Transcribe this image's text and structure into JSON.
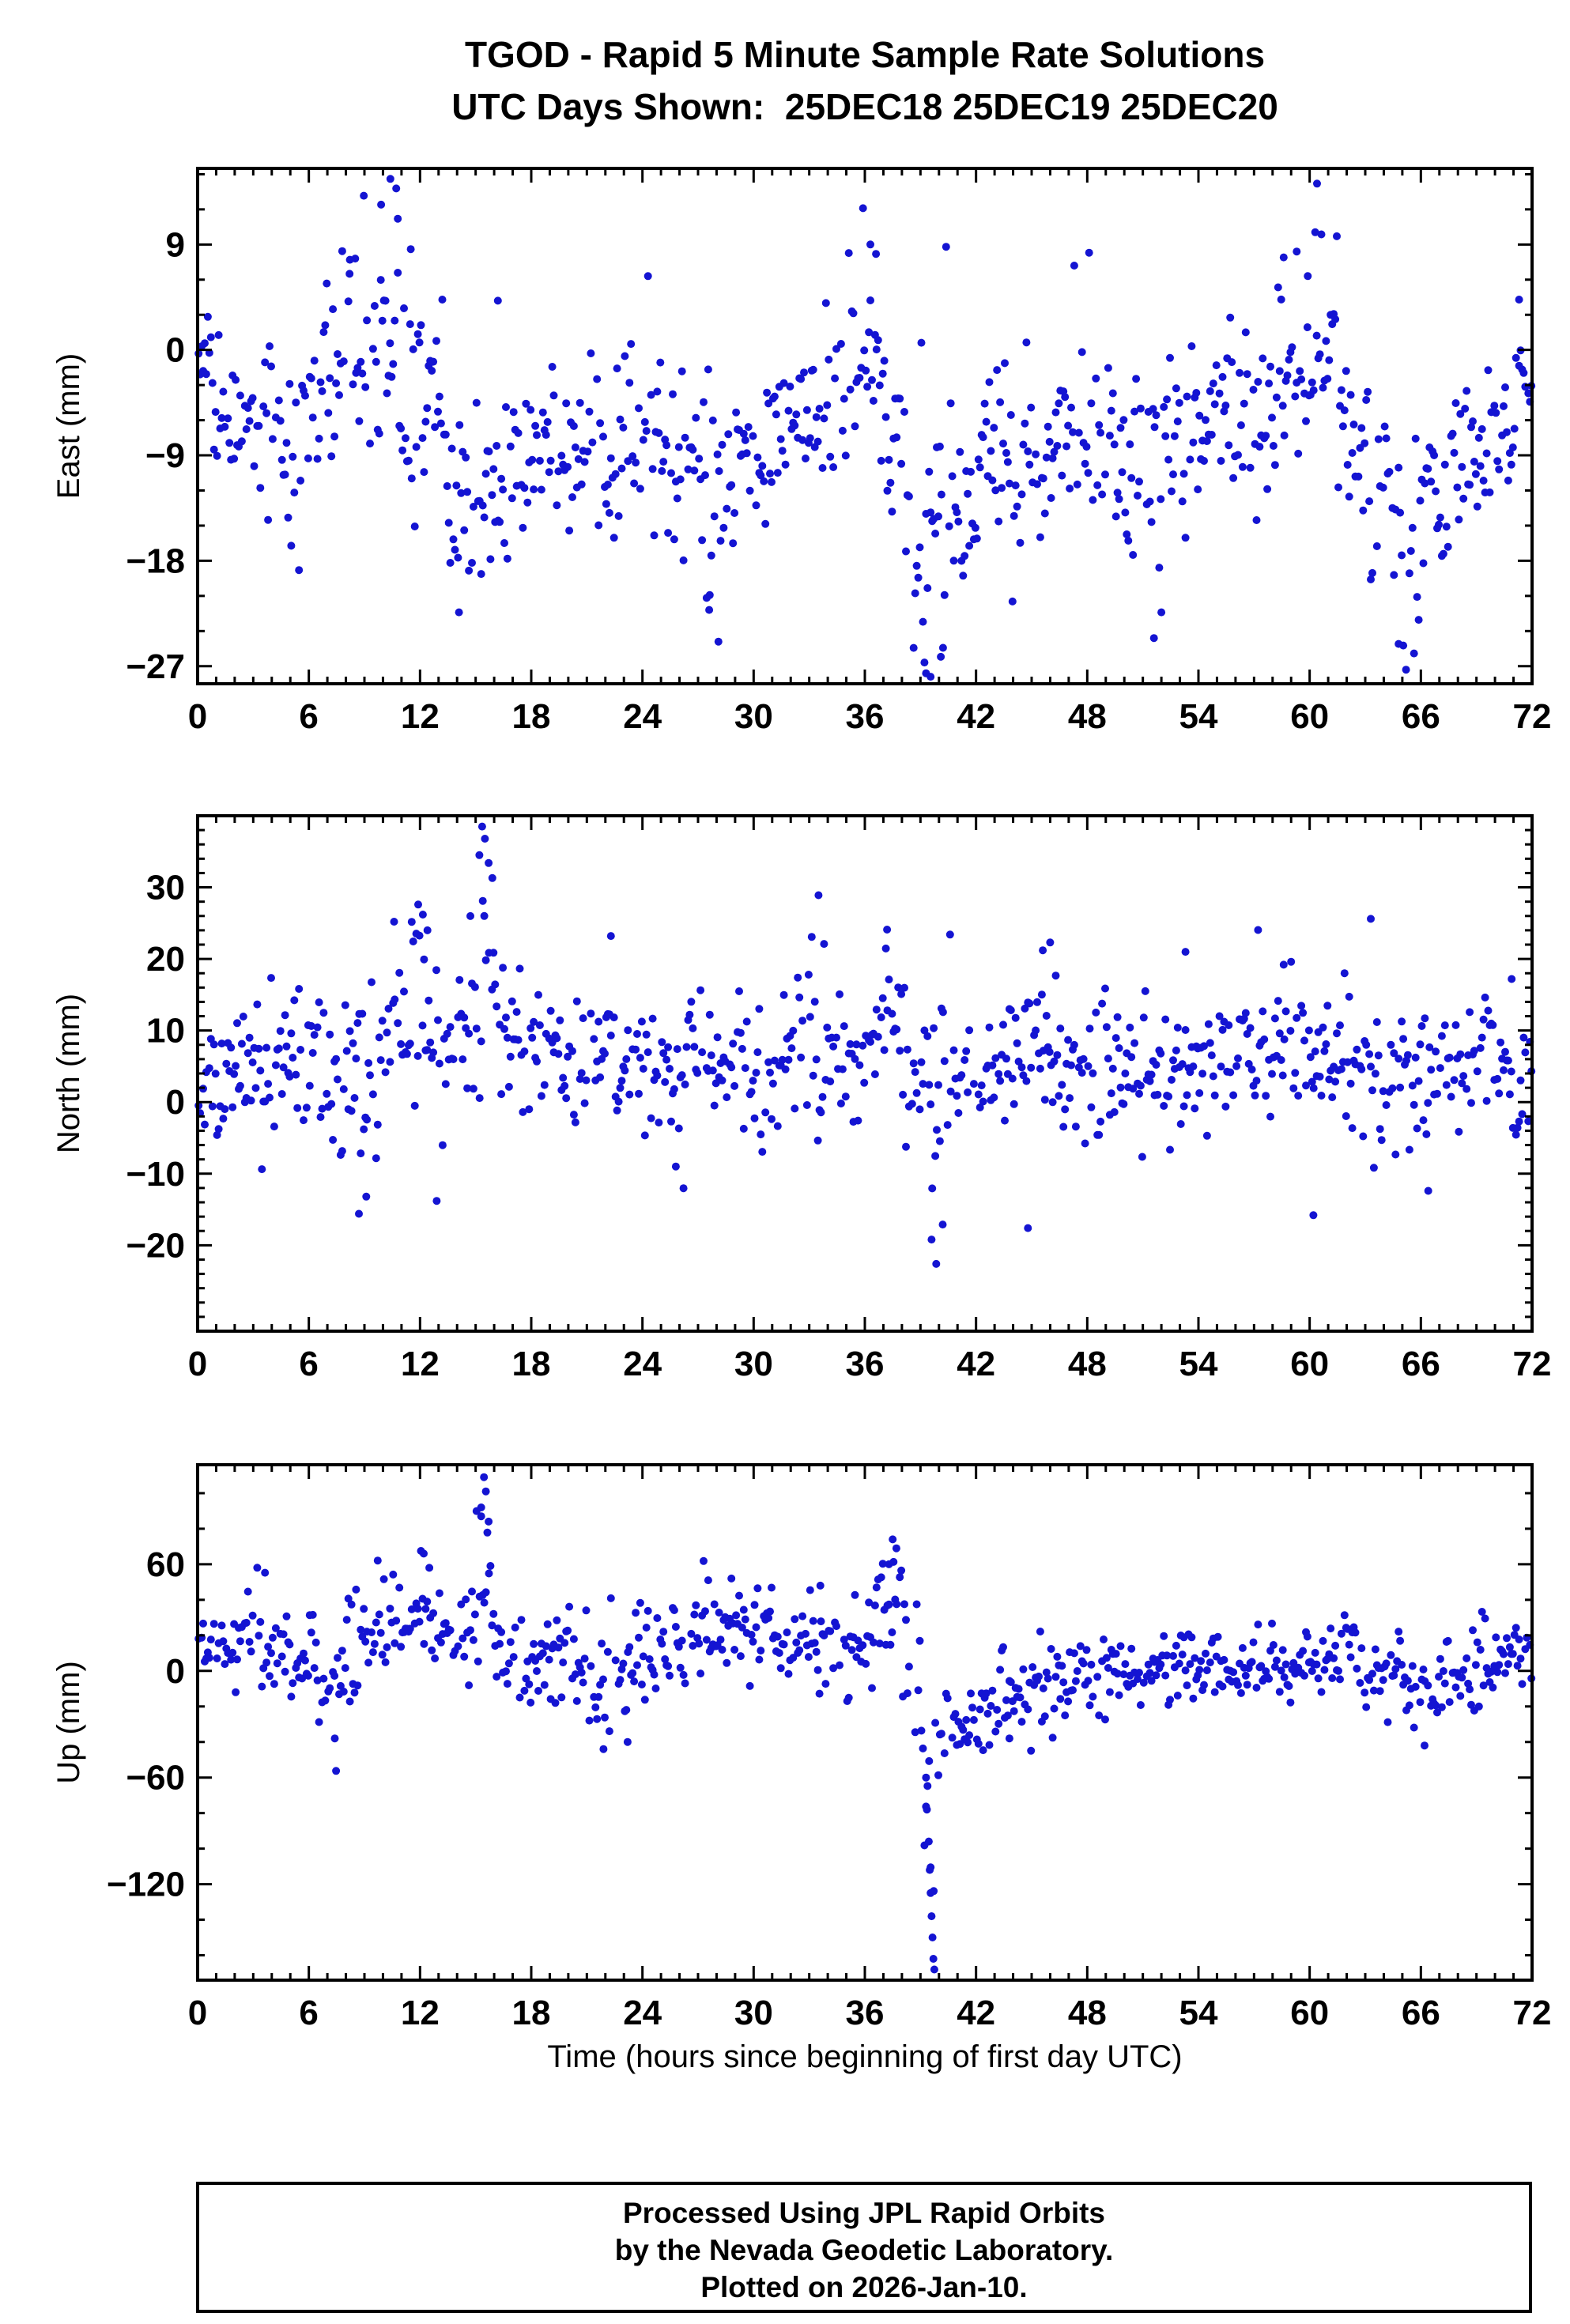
{
  "seed": 20181225,
  "title": {
    "line1": "TGOD - Rapid 5 Minute Sample Rate Solutions",
    "line2": "UTC Days Shown:  25DEC18 25DEC19 25DEC20"
  },
  "xlabel": "Time (hours since beginning of first day UTC)",
  "footer": {
    "line1": "Processed Using JPL Rapid Orbits",
    "line2": "by the Nevada Geodetic Laboratory.",
    "line3": "Plotted on 2026-Jan-10."
  },
  "colors": {
    "point": "#1414d2",
    "axis": "#000000",
    "background": "#ffffff"
  },
  "x_axis": {
    "min": 0,
    "max": 72,
    "major_step": 6,
    "minor_step": 1,
    "tick_labels": [
      0,
      6,
      12,
      18,
      24,
      30,
      36,
      42,
      48,
      54,
      60,
      66,
      72
    ]
  },
  "chart_data": [
    {
      "type": "scatter",
      "name": "East",
      "ylabel": "East (mm)",
      "units": "mm",
      "ylim": [
        -28.5,
        15.5
      ],
      "yticks": [
        9,
        0,
        -9,
        -18,
        -27
      ],
      "y_minor_step": 3,
      "synthesis": {
        "sample_step_hours": 0.083333,
        "drop_fraction": 0.12,
        "segments": [
          [
            0,
            0.8,
            -0.5,
            1.5
          ],
          [
            0.8,
            2.5,
            -6,
            2.5
          ],
          [
            2.5,
            4.5,
            -5,
            3
          ],
          [
            4.5,
            6,
            -8,
            4
          ],
          [
            6,
            7.5,
            -3,
            4.5
          ],
          [
            7.5,
            9,
            1,
            4.5
          ],
          [
            9,
            10,
            -3,
            5
          ],
          [
            10,
            11,
            2,
            6
          ],
          [
            11,
            12,
            -2,
            5
          ],
          [
            12,
            13.5,
            -4,
            4
          ],
          [
            13.5,
            15,
            -13,
            5
          ],
          [
            15,
            17,
            -11,
            4
          ],
          [
            17,
            19,
            -9,
            4
          ],
          [
            19,
            21,
            -8,
            3.5
          ],
          [
            21,
            23,
            -8,
            4
          ],
          [
            23,
            25,
            -9,
            4
          ],
          [
            25,
            27,
            -10,
            4.5
          ],
          [
            27,
            29,
            -13,
            5
          ],
          [
            29,
            31,
            -10,
            4
          ],
          [
            31,
            33,
            -7,
            3.5
          ],
          [
            33,
            35,
            -6,
            4
          ],
          [
            35,
            37,
            -3,
            5
          ],
          [
            37,
            38.5,
            -6,
            5
          ],
          [
            38.5,
            40.5,
            -15,
            6
          ],
          [
            40.5,
            42,
            -13,
            4
          ],
          [
            42,
            44,
            -9,
            4
          ],
          [
            44,
            46,
            -8,
            4
          ],
          [
            46,
            48,
            -7,
            4
          ],
          [
            48,
            50,
            -8,
            4
          ],
          [
            50,
            52,
            -11,
            5
          ],
          [
            52,
            54,
            -8,
            4
          ],
          [
            54,
            56,
            -6,
            3.5
          ],
          [
            56,
            58,
            -5,
            4
          ],
          [
            58,
            60,
            -3,
            4
          ],
          [
            60,
            61.5,
            -2,
            4.5
          ],
          [
            61.5,
            63,
            -7,
            4
          ],
          [
            63,
            64.5,
            -11,
            5
          ],
          [
            64.5,
            66,
            -17,
            5
          ],
          [
            66,
            67.5,
            -12,
            4
          ],
          [
            67.5,
            69.5,
            -9,
            3.5
          ],
          [
            69.5,
            71,
            -7,
            3.5
          ],
          [
            71,
            72,
            -4,
            3
          ]
        ]
      },
      "outliers": [
        [
          8.2,
          6.5
        ],
        [
          8.5,
          7.8
        ],
        [
          9.9,
          12.4
        ],
        [
          10.4,
          14.6
        ],
        [
          10.8,
          11.2
        ],
        [
          11.5,
          8.6
        ],
        [
          13.2,
          4.3
        ],
        [
          16.2,
          4.2
        ],
        [
          24.3,
          6.3
        ],
        [
          35.9,
          12.1
        ],
        [
          36.3,
          9.0
        ],
        [
          36.6,
          8.2
        ],
        [
          39.3,
          -27.6
        ],
        [
          39.55,
          -27.9
        ],
        [
          47.3,
          7.2
        ],
        [
          48.1,
          8.3
        ],
        [
          58.6,
          7.9
        ],
        [
          59.3,
          8.4
        ],
        [
          60.4,
          14.2
        ],
        [
          59.9,
          6.3
        ],
        [
          65.2,
          -27.3
        ],
        [
          64.8,
          -25.1
        ],
        [
          51.6,
          -24.6
        ],
        [
          52.0,
          -22.4
        ],
        [
          28.1,
          -24.9
        ],
        [
          27.6,
          -22.2
        ],
        [
          14.1,
          -22.4
        ],
        [
          40.1,
          -26.2
        ],
        [
          71.3,
          4.3
        ],
        [
          33.9,
          4.0
        ]
      ]
    },
    {
      "type": "scatter",
      "name": "North",
      "ylabel": "North (mm)",
      "units": "mm",
      "ylim": [
        -32,
        40
      ],
      "yticks": [
        30,
        20,
        10,
        0,
        -10,
        -20
      ],
      "y_minor_step": 2,
      "synthesis": {
        "sample_step_hours": 0.083333,
        "drop_fraction": 0.12,
        "segments": [
          [
            0,
            1.5,
            1,
            4.5
          ],
          [
            1.5,
            3,
            3,
            5.5
          ],
          [
            3,
            5,
            4,
            6
          ],
          [
            5,
            7,
            6,
            5.5
          ],
          [
            7,
            8.5,
            3,
            7
          ],
          [
            8.5,
            10,
            5,
            7
          ],
          [
            10,
            11.5,
            9,
            6
          ],
          [
            11.5,
            13,
            11,
            7
          ],
          [
            13,
            14.5,
            7,
            6
          ],
          [
            14.5,
            16,
            15,
            9
          ],
          [
            16,
            17.5,
            9,
            6
          ],
          [
            17.5,
            19.5,
            7,
            5
          ],
          [
            19.5,
            22,
            6,
            5
          ],
          [
            22,
            24,
            4,
            5
          ],
          [
            24,
            26,
            3,
            5
          ],
          [
            26,
            28,
            5,
            5
          ],
          [
            28,
            30,
            5,
            5.5
          ],
          [
            30,
            32,
            4,
            5.5
          ],
          [
            32,
            34,
            7,
            6.5
          ],
          [
            34,
            36,
            5,
            5.5
          ],
          [
            36,
            38,
            8,
            6
          ],
          [
            38,
            39.5,
            4,
            7
          ],
          [
            39.5,
            41,
            -2,
            8
          ],
          [
            41,
            43,
            3,
            5
          ],
          [
            43,
            45,
            5,
            5.5
          ],
          [
            45,
            47,
            6,
            5.5
          ],
          [
            47,
            49,
            4,
            5
          ],
          [
            49,
            51,
            4,
            5
          ],
          [
            51,
            53,
            5,
            5
          ],
          [
            53,
            55,
            5,
            5
          ],
          [
            55,
            57,
            4,
            5
          ],
          [
            57,
            59,
            7,
            5.5
          ],
          [
            59,
            61,
            6,
            5.5
          ],
          [
            61,
            63,
            5,
            5
          ],
          [
            63,
            65,
            4,
            5.5
          ],
          [
            65,
            67,
            4,
            5
          ],
          [
            67,
            69,
            5,
            5
          ],
          [
            69,
            71,
            4,
            5
          ],
          [
            71,
            72,
            1,
            4.5
          ]
        ]
      },
      "outliers": [
        [
          15.35,
          38.5
        ],
        [
          15.5,
          36.8
        ],
        [
          15.2,
          34.5
        ],
        [
          15.7,
          33.4
        ],
        [
          15.9,
          31.3
        ],
        [
          11.9,
          27.6
        ],
        [
          12.15,
          26.2
        ],
        [
          12.4,
          24.0
        ],
        [
          10.6,
          25.2
        ],
        [
          33.5,
          28.9
        ],
        [
          33.8,
          22.1
        ],
        [
          22.3,
          23.2
        ],
        [
          37.2,
          24.1
        ],
        [
          40.6,
          23.4
        ],
        [
          45.6,
          21.2
        ],
        [
          46.0,
          22.3
        ],
        [
          53.3,
          21.0
        ],
        [
          58.6,
          19.2
        ],
        [
          59.0,
          19.6
        ],
        [
          63.3,
          25.6
        ],
        [
          39.85,
          -22.6
        ],
        [
          39.6,
          -19.2
        ],
        [
          40.2,
          -17.1
        ],
        [
          44.8,
          -17.6
        ],
        [
          8.7,
          -15.6
        ],
        [
          9.1,
          -13.2
        ],
        [
          12.9,
          -13.8
        ],
        [
          60.2,
          -15.8
        ],
        [
          66.4,
          -12.4
        ],
        [
          70.9,
          17.2
        ]
      ]
    },
    {
      "type": "scatter",
      "name": "Up",
      "ylabel": "Up (mm)",
      "units": "mm",
      "ylim": [
        -174,
        116
      ],
      "yticks": [
        60,
        0,
        -60,
        -120
      ],
      "y_minor_step": 20,
      "synthesis": {
        "sample_step_hours": 0.083333,
        "drop_fraction": 0.12,
        "segments": [
          [
            0,
            1.5,
            12,
            10
          ],
          [
            1.5,
            3,
            15,
            14
          ],
          [
            3,
            5,
            15,
            16
          ],
          [
            5,
            6.5,
            8,
            12
          ],
          [
            6.5,
            8,
            -12,
            16
          ],
          [
            8,
            9.5,
            18,
            16
          ],
          [
            9.5,
            11,
            28,
            16
          ],
          [
            11,
            12.5,
            32,
            16
          ],
          [
            12.5,
            14,
            22,
            14
          ],
          [
            14,
            15,
            25,
            15
          ],
          [
            15,
            16,
            45,
            22
          ],
          [
            16,
            17.5,
            12,
            14
          ],
          [
            17.5,
            19,
            8,
            13
          ],
          [
            19,
            21,
            5,
            14
          ],
          [
            21,
            23,
            -8,
            16
          ],
          [
            23,
            25,
            5,
            15
          ],
          [
            25,
            27,
            15,
            14
          ],
          [
            27,
            29,
            22,
            14
          ],
          [
            29,
            31,
            22,
            13
          ],
          [
            31,
            33,
            18,
            12
          ],
          [
            33,
            35,
            12,
            14
          ],
          [
            35,
            36.5,
            15,
            15
          ],
          [
            36.5,
            38,
            35,
            18
          ],
          [
            38,
            39,
            15,
            25
          ],
          [
            39,
            40,
            -55,
            40
          ],
          [
            40,
            41.5,
            -30,
            12
          ],
          [
            41.5,
            43,
            -22,
            12
          ],
          [
            43,
            45,
            -12,
            12
          ],
          [
            45,
            47,
            -8,
            12
          ],
          [
            47,
            49,
            -2,
            11
          ],
          [
            49,
            51,
            0,
            10
          ],
          [
            51,
            53,
            2,
            10
          ],
          [
            53,
            55,
            3,
            10
          ],
          [
            55,
            57,
            0,
            10
          ],
          [
            57,
            59,
            2,
            11
          ],
          [
            59,
            61,
            3,
            11
          ],
          [
            61,
            63,
            10,
            12
          ],
          [
            63,
            65,
            0,
            12
          ],
          [
            65,
            67,
            -10,
            13
          ],
          [
            67,
            69,
            -6,
            12
          ],
          [
            69,
            71,
            5,
            11
          ],
          [
            71,
            72,
            10,
            10
          ]
        ]
      },
      "outliers": [
        [
          15.45,
          109
        ],
        [
          15.55,
          101
        ],
        [
          15.3,
          92
        ],
        [
          15.7,
          84
        ],
        [
          12.2,
          66
        ],
        [
          12.5,
          58
        ],
        [
          37.5,
          74
        ],
        [
          37.7,
          69
        ],
        [
          37.3,
          60
        ],
        [
          39.35,
          -78
        ],
        [
          39.45,
          -96
        ],
        [
          39.5,
          -112
        ],
        [
          39.55,
          -125
        ],
        [
          39.6,
          -138
        ],
        [
          39.65,
          -150
        ],
        [
          39.7,
          -162
        ],
        [
          39.75,
          -168
        ],
        [
          39.3,
          -60
        ],
        [
          28.8,
          52
        ],
        [
          33.6,
          48
        ],
        [
          66.2,
          -42
        ],
        [
          7.4,
          -38
        ],
        [
          21.9,
          -44
        ],
        [
          23.2,
          -40
        ],
        [
          43.8,
          -38
        ]
      ]
    }
  ]
}
